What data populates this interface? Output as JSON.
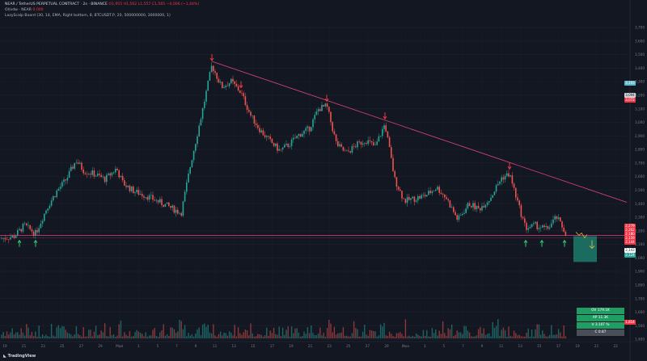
{
  "legend": {
    "symbol_line": "NEAR / TetherUS PERPETUAL CONTRACT · 2s · BINANCE",
    "ohlc": "O1,955 H1,562 L1,557 C1,565 −0,006 (−1,44%)",
    "line2": "OI/vdw · NEAR",
    "line2_value": "0.000",
    "line3": "LazyScalp Board (30, 14, EMA, Right bottom, 8, BTCUSDT.P, 20, 500000000, 3000000, 1)"
  },
  "price_axis": [
    "3,700",
    "3,600",
    "3,500",
    "3,400",
    "3,300",
    "3,200",
    "3,100",
    "3,000",
    "2,900",
    "2,800",
    "2,700",
    "2,600",
    "2,500",
    "2,400",
    "2,300",
    "2,200",
    "2,100",
    "2,000",
    "1,900",
    "1,800",
    "1,700",
    "1,600",
    "1,500",
    "1,400"
  ],
  "time_axis": [
    "19",
    "21",
    "23",
    "25",
    "27",
    "29",
    "Май",
    "3",
    "5",
    "7",
    "9",
    "11",
    "13",
    "15",
    "17",
    "19",
    "21",
    "23",
    "25",
    "27",
    "29",
    "Июн",
    "3",
    "5",
    "7",
    "9",
    "11",
    "13",
    "15",
    "17",
    "19",
    "21",
    "22"
  ],
  "price_labels": [
    {
      "text": "3,193",
      "bg": "#5fb6c8"
    },
    {
      "text": "3,094",
      "bg": "#d0d3db"
    },
    {
      "text": "3,072",
      "bg": "#f23645"
    },
    {
      "text": "2,279",
      "bg": "#f23645"
    },
    {
      "text": "2,202",
      "bg": "#f23645"
    },
    {
      "text": "2,180",
      "bg": "#f23645"
    },
    {
      "text": "2,159",
      "bg": "#f23645"
    },
    {
      "text": "2,144",
      "bg": "#f23645"
    },
    {
      "text": "2,143",
      "bg": "#ffffff"
    },
    {
      "text": "2,124",
      "bg": "#26a69a"
    },
    {
      "text": "1,814",
      "bg": "#f23645"
    }
  ],
  "info_box": [
    "OV 179.1K",
    "AP 11.3K",
    "V 3.10T %",
    "C 0.87"
  ],
  "brand": "TradingView",
  "colors": {
    "up": "#26a69a",
    "down": "#ef5350",
    "trend": "#e0457b",
    "support": "#e0457b",
    "arrow_down": "#f23645",
    "arrow_up": "#2ecc71"
  },
  "chart_data": {
    "type": "candlestick",
    "ylim": [
      1.4,
      3.7
    ],
    "close_path": [
      [
        0,
        2.14
      ],
      [
        18,
        2.16
      ],
      [
        30,
        2.24
      ],
      [
        44,
        2.18
      ],
      [
        58,
        2.37
      ],
      [
        70,
        2.49
      ],
      [
        82,
        2.58
      ],
      [
        94,
        2.72
      ],
      [
        104,
        2.64
      ],
      [
        116,
        2.62
      ],
      [
        130,
        2.58
      ],
      [
        144,
        2.66
      ],
      [
        152,
        2.55
      ],
      [
        166,
        2.49
      ],
      [
        180,
        2.46
      ],
      [
        194,
        2.42
      ],
      [
        208,
        2.38
      ],
      [
        224,
        2.33
      ],
      [
        236,
        2.7
      ],
      [
        250,
        3.08
      ],
      [
        262,
        3.42
      ],
      [
        274,
        3.26
      ],
      [
        286,
        3.3
      ],
      [
        298,
        3.22
      ],
      [
        310,
        3.05
      ],
      [
        322,
        2.94
      ],
      [
        334,
        2.86
      ],
      [
        346,
        2.79
      ],
      [
        358,
        2.84
      ],
      [
        370,
        2.91
      ],
      [
        382,
        2.95
      ],
      [
        394,
        3.1
      ],
      [
        404,
        3.12
      ],
      [
        416,
        2.84
      ],
      [
        428,
        2.77
      ],
      [
        440,
        2.83
      ],
      [
        452,
        2.87
      ],
      [
        464,
        2.82
      ],
      [
        476,
        2.99
      ],
      [
        488,
        2.58
      ],
      [
        500,
        2.42
      ],
      [
        514,
        2.44
      ],
      [
        526,
        2.46
      ],
      [
        540,
        2.52
      ],
      [
        552,
        2.44
      ],
      [
        566,
        2.28
      ],
      [
        580,
        2.4
      ],
      [
        592,
        2.36
      ],
      [
        606,
        2.44
      ],
      [
        620,
        2.59
      ],
      [
        630,
        2.62
      ],
      [
        642,
        2.37
      ],
      [
        650,
        2.22
      ],
      [
        662,
        2.24
      ],
      [
        676,
        2.21
      ],
      [
        688,
        2.3
      ],
      [
        700,
        2.18
      ]
    ],
    "trendline": {
      "from": [
        262,
        3.45
      ],
      "to": [
        775,
        2.41
      ]
    },
    "support": 2.165,
    "markers_down_x": [
      262,
      298,
      404,
      476,
      630
    ],
    "markers_up_x": [
      24,
      44,
      650,
      670,
      698
    ]
  }
}
